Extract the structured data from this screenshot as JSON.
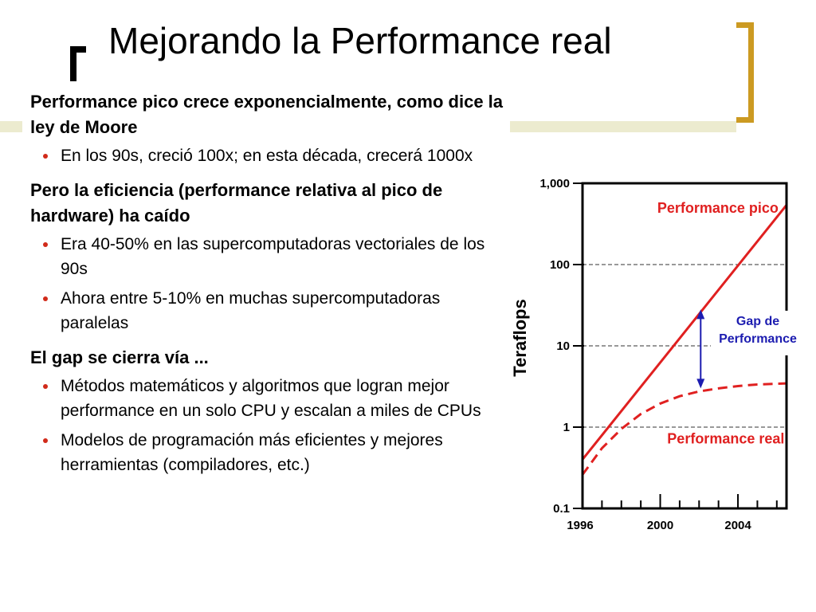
{
  "slide": {
    "title": "Mejorando la Performance real",
    "sections": [
      {
        "heading": "Performance pico crece exponencialmente, como dice la ley de Moore",
        "bullets": [
          "En los 90s, creció 100x; en esta década, crecerá 1000x"
        ]
      },
      {
        "heading": "Pero la eficiencia (performance relativa al pico de hardware) ha caído",
        "bullets": [
          "Era 40-50% en las supercomputadoras vectoriales de los 90s",
          "Ahora entre 5-10% en muchas supercomputadoras paralelas"
        ]
      },
      {
        "heading": "El gap se cierra vía ...",
        "bullets": [
          "Métodos matemáticos y algoritmos que logran mejor performance en un solo CPU y escalan a miles de CPUs",
          "Modelos de programación más eficientes y mejores herramientas (compiladores, etc.)"
        ]
      }
    ]
  },
  "chart_data": {
    "type": "line",
    "ylabel": "Teraflops",
    "xlabel": "",
    "yscale": "log",
    "ylim": [
      0.1,
      1000
    ],
    "xlim": [
      1996,
      2006.5
    ],
    "yticks": [
      0.1,
      1,
      10,
      100,
      1000
    ],
    "ytick_labels": [
      "0.1",
      "1",
      "10",
      "100",
      "1,000"
    ],
    "xtick_labels": [
      {
        "x": 1996,
        "label": "1996"
      },
      {
        "x": 2000,
        "label": "2000"
      },
      {
        "x": 2004,
        "label": "2004"
      }
    ],
    "grid": "dashed horizontal at 1, 10, 100",
    "series": [
      {
        "name": "Performance pico",
        "style": "solid",
        "color": "#e02020",
        "x": [
          1996,
          2006.5
        ],
        "y": [
          0.4,
          540
        ]
      },
      {
        "name": "Performance real",
        "style": "dashed",
        "color": "#e02020",
        "x": [
          1996,
          1997,
          1998,
          1999,
          2000,
          2001,
          2002,
          2003,
          2004,
          2005,
          2006.5
        ],
        "y": [
          0.26,
          0.55,
          0.95,
          1.45,
          1.95,
          2.4,
          2.75,
          3.0,
          3.2,
          3.35,
          3.45
        ]
      }
    ],
    "annotation": {
      "text_lines": [
        "Gap de",
        "Performance"
      ],
      "x": 2002,
      "y_from": 3.0,
      "y_to": 28,
      "color": "#1c1cb0"
    }
  }
}
